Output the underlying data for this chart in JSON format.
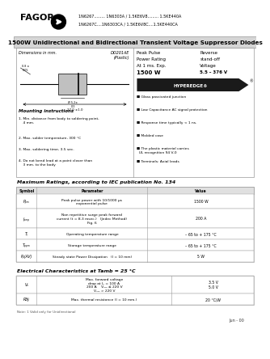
{
  "title_text": "1500W Unidirectional and Bidirectional Transient Voltage Suppressor Diodes",
  "header_line1": "1N6267......... 1N6303A / 1.5KE6V8......... 1.5KE440A",
  "header_line2": "1N6267C....1N6303CA / 1.5KE6V8C....1.5KE440CA",
  "package_name": "DO201AE\n(Plastic)",
  "peak_pulse_line1": "Peak Pulse",
  "peak_pulse_line2": "Power Rating",
  "peak_pulse_line3": "At 1 ms. Exp.",
  "peak_pulse_line4": "1500 W",
  "reverse_line1": "Reverse",
  "reverse_line2": "stand-off",
  "reverse_line3": "Voltage",
  "reverse_line4": "5.5 – 376 V",
  "hyperedge_text": "HYPEREDGE®",
  "features": [
    "Glass passivated junction",
    "Low Capacitance AC signal protection",
    "Response time typically < 1 ns.",
    "Molded case",
    "The plastic material carries\n  UL recognition 94 V-0",
    "Terminals: Axial leads"
  ],
  "mounting_title": "Mounting instructions",
  "mounting_items": [
    "1. Min. distance from body to soldering point,\n    4 mm.",
    "2. Max. solder temperature, 300 °C",
    "3. Max. soldering time, 3.5 sec.",
    "4. Do not bend lead at a point closer than\n    3 mm. to the body"
  ],
  "max_ratings_title": "Maximum Ratings, according to IEC publication No. 134",
  "max_ratings_rows": [
    [
      "Pₚₘ",
      "Peak pulse power with 10/1000 μs\nexponential pulse",
      "1500 W"
    ],
    [
      "Iₚₘₚ",
      "Non repetitive surge peak forward\ncurrent (t = 8.3 msec.)   (Jedec Method)\nFig. 6",
      "200 A"
    ],
    [
      "Tⱼ",
      "Operating temperature range",
      "– 65 to + 175 °C"
    ],
    [
      "Tₚₚₘ",
      "Storage temperature range",
      "– 65 to + 175 °C"
    ],
    [
      "Pₚ(AV)",
      "Steady state Power Dissipation   (l = 10 mm)",
      "5 W"
    ]
  ],
  "elec_title": "Electrical Characteristics at Tamb = 25 °C",
  "elec_rows": [
    [
      "Vₙ",
      "Max. forward voltage\ndrop at Iₙ = 100 A\n200 A",
      "Vₙₘ ≤ 220 V\nVₙₘ > 220 V",
      "3.5 V\n5.0 V"
    ],
    [
      "Rθjₗ",
      "Max. thermal resistance (l = 10 mm.)",
      "",
      "20 °C/W"
    ]
  ],
  "footer_text": "Note: 1 Valid only for Unidirectional",
  "date_text": "Jun - 00",
  "bg_color": "#ffffff",
  "title_bg": "#e0e0e0",
  "table_header_bg": "#e8e8e8",
  "border_color": "#999999"
}
